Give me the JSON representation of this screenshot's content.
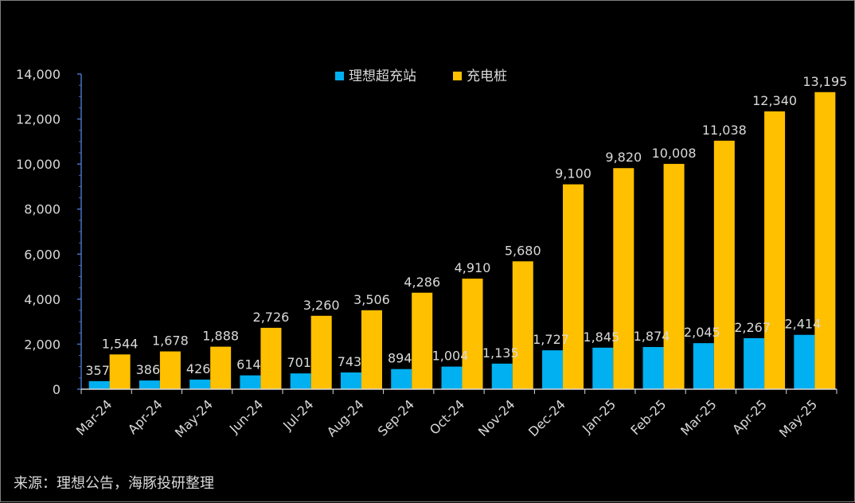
{
  "chart_data": {
    "type": "bar",
    "categories": [
      "Mar-24",
      "Apr-24",
      "May-24",
      "Jun-24",
      "Jul-24",
      "Aug-24",
      "Sep-24",
      "Oct-24",
      "Nov-24",
      "Dec-24",
      "Jan-25",
      "Feb-25",
      "Mar-25",
      "Apr-25",
      "May-25"
    ],
    "series": [
      {
        "name": "理想超充站",
        "color": "#00b0f0",
        "values": [
          357,
          386,
          426,
          614,
          701,
          743,
          894,
          1004,
          1135,
          1727,
          1845,
          1874,
          2045,
          2267,
          2414
        ],
        "labels": [
          "357",
          "386",
          "426",
          "614",
          "701",
          "743",
          "894",
          "1,004",
          "1,135",
          "1,727",
          "1,845",
          "1,874",
          "2,045",
          "2,267",
          "2,414"
        ]
      },
      {
        "name": "充电桩",
        "color": "#ffc000",
        "values": [
          1544,
          1678,
          1888,
          2726,
          3260,
          3506,
          4286,
          4910,
          5680,
          9100,
          9820,
          10008,
          11038,
          12340,
          13195
        ],
        "labels": [
          "1,544",
          "1,678",
          "1,888",
          "2,726",
          "3,260",
          "3,506",
          "4,286",
          "4,910",
          "5,680",
          "9,100",
          "9,820",
          "10,008",
          "11,038",
          "12,340",
          "13,195"
        ]
      }
    ],
    "ylim": [
      0,
      14000
    ],
    "yticks": [
      0,
      2000,
      4000,
      6000,
      8000,
      10000,
      12000,
      14000
    ],
    "ytick_labels": [
      "0",
      "2,000",
      "4,000",
      "6,000",
      "8,000",
      "10,000",
      "12,000",
      "14,000"
    ],
    "legend_position": "top-center",
    "grid": false,
    "axis_color": "#4472c4"
  },
  "source_note": "来源：理想公告，海豚投研整理"
}
